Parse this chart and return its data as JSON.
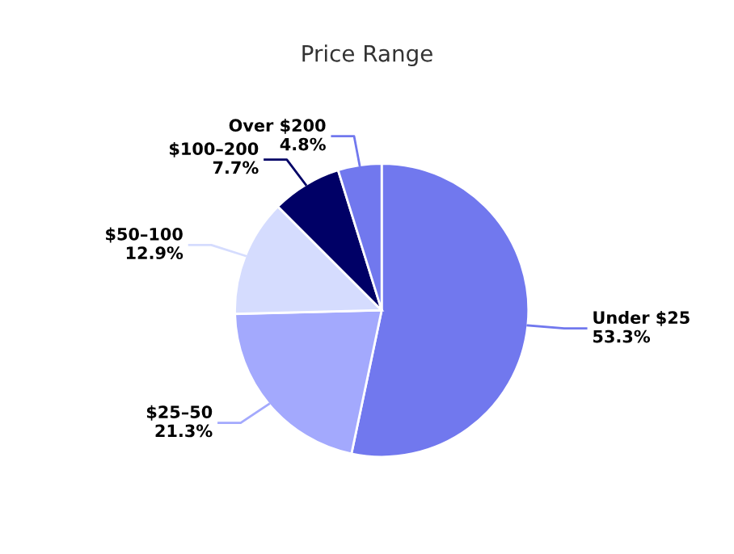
{
  "chart_data": {
    "type": "pie",
    "title": "Price Range",
    "categories": [
      "Under $25",
      "$25–50",
      "$50–100",
      "$100–200",
      "Over $200"
    ],
    "values": [
      53.3,
      21.3,
      12.9,
      7.7,
      4.8
    ],
    "colors": [
      "#7178ee",
      "#a3a9fd",
      "#d5dcfe",
      "#000066",
      "#7178ee"
    ],
    "value_labels": [
      "53.3%",
      "21.3%",
      "12.9%",
      "7.7%",
      "4.8%"
    ]
  }
}
